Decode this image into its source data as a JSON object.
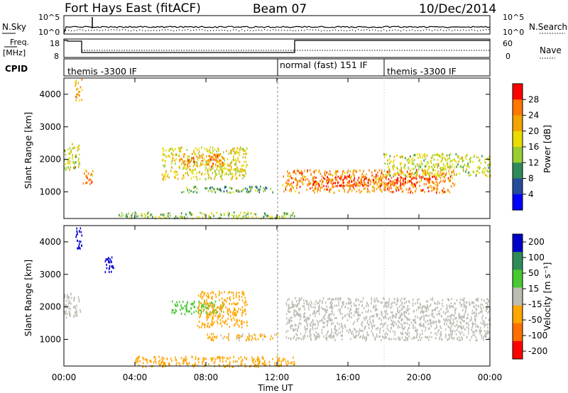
{
  "header": {
    "title": "Fort Hays East (fitACF)",
    "beam": "Beam 07",
    "date": "10/Dec/2014"
  },
  "nsky_panel": {
    "left_label": "N.Sky",
    "right_label": "N.Search",
    "left_ticks": [
      "10^5",
      "10^0"
    ],
    "right_ticks": [
      "10^5",
      "10^0"
    ]
  },
  "freq_panel": {
    "label_top": "Freq.",
    "label_units": "[MHz]",
    "left_ticks": [
      "18",
      "8"
    ],
    "right_label": "Nave",
    "right_ticks": [
      "60",
      "0"
    ]
  },
  "cpid_panel": {
    "label": "CPID",
    "segments": [
      "themis -3300 IF",
      "normal (fast) 151 IF",
      "themis -3300 IF"
    ]
  },
  "axes": {
    "ylabel": "Slant Range [km]",
    "y_ticks": [
      "4000",
      "3000",
      "2000",
      "1000"
    ],
    "x_ticks": [
      "00:00",
      "04:00",
      "08:00",
      "12:00",
      "16:00",
      "20:00",
      "00:00"
    ],
    "xlabel": "Time UT"
  },
  "colorbars": {
    "power": {
      "label": "Power [dB]",
      "ticks": [
        "28",
        "24",
        "20",
        "16",
        "12",
        "8",
        "4"
      ],
      "colors": [
        "#ff0000",
        "#ff7700",
        "#f2a400",
        "#e8dc00",
        "#9acd32",
        "#2e8b57",
        "#264b9c",
        "#0000ff"
      ]
    },
    "velocity": {
      "label": "Velocity [m s⁻¹]",
      "ticks": [
        "200",
        "100",
        "50",
        "15",
        "-15",
        "-50",
        "-100",
        "-200"
      ],
      "colors": [
        "#0000cc",
        "#2e8b57",
        "#48c832",
        "#bdbdb4",
        "#ffa500",
        "#ff7000",
        "#ff0000"
      ]
    }
  },
  "chart_data": [
    {
      "type": "heatmap",
      "name": "Power",
      "x_range_ut_hours": [
        0,
        24
      ],
      "ylim_km": [
        180,
        4500
      ],
      "regions": [
        {
          "t": [
            0.0,
            0.9
          ],
          "r": [
            1700,
            2500
          ],
          "power_db": 14
        },
        {
          "t": [
            0.6,
            1.0
          ],
          "r": [
            3800,
            4500
          ],
          "power_db": 20
        },
        {
          "t": [
            1.0,
            1.6
          ],
          "r": [
            1250,
            1700
          ],
          "power_db": 22
        },
        {
          "t": [
            5.5,
            10.3
          ],
          "r": [
            1400,
            2400
          ],
          "power_db": 16
        },
        {
          "t": [
            6.5,
            9.0
          ],
          "r": [
            1800,
            2200
          ],
          "power_db": 22
        },
        {
          "t": [
            6.5,
            11.8
          ],
          "r": [
            1000,
            1200
          ],
          "power_db": 10
        },
        {
          "t": [
            12.3,
            22.0
          ],
          "r": [
            1000,
            1700
          ],
          "power_db": 22
        },
        {
          "t": [
            14.0,
            21.0
          ],
          "r": [
            1200,
            1500
          ],
          "power_db": 26
        },
        {
          "t": [
            18.0,
            24.0
          ],
          "r": [
            1500,
            2200
          ],
          "power_db": 14
        },
        {
          "t": [
            3.0,
            13.0
          ],
          "r": [
            200,
            400
          ],
          "power_db": 12
        }
      ]
    },
    {
      "type": "heatmap",
      "name": "Velocity",
      "x_range_ut_hours": [
        0,
        24
      ],
      "ylim_km": [
        180,
        4500
      ],
      "regions": [
        {
          "t": [
            0.0,
            0.9
          ],
          "r": [
            1700,
            2500
          ],
          "velocity_ms": 0
        },
        {
          "t": [
            0.6,
            1.0
          ],
          "r": [
            3800,
            4500
          ],
          "velocity_ms": 200
        },
        {
          "t": [
            2.3,
            2.8
          ],
          "r": [
            3100,
            3700
          ],
          "velocity_ms": 200
        },
        {
          "t": [
            6.0,
            9.0
          ],
          "r": [
            1800,
            2200
          ],
          "velocity_ms": 30
        },
        {
          "t": [
            7.5,
            10.3
          ],
          "r": [
            1400,
            2500
          ],
          "velocity_ms": -30
        },
        {
          "t": [
            8.0,
            12.0
          ],
          "r": [
            1000,
            1200
          ],
          "velocity_ms": -20
        },
        {
          "t": [
            12.5,
            24.0
          ],
          "r": [
            1000,
            2300
          ],
          "velocity_ms": 0
        },
        {
          "t": [
            4.0,
            13.0
          ],
          "r": [
            180,
            500
          ],
          "velocity_ms": -40
        }
      ]
    }
  ]
}
